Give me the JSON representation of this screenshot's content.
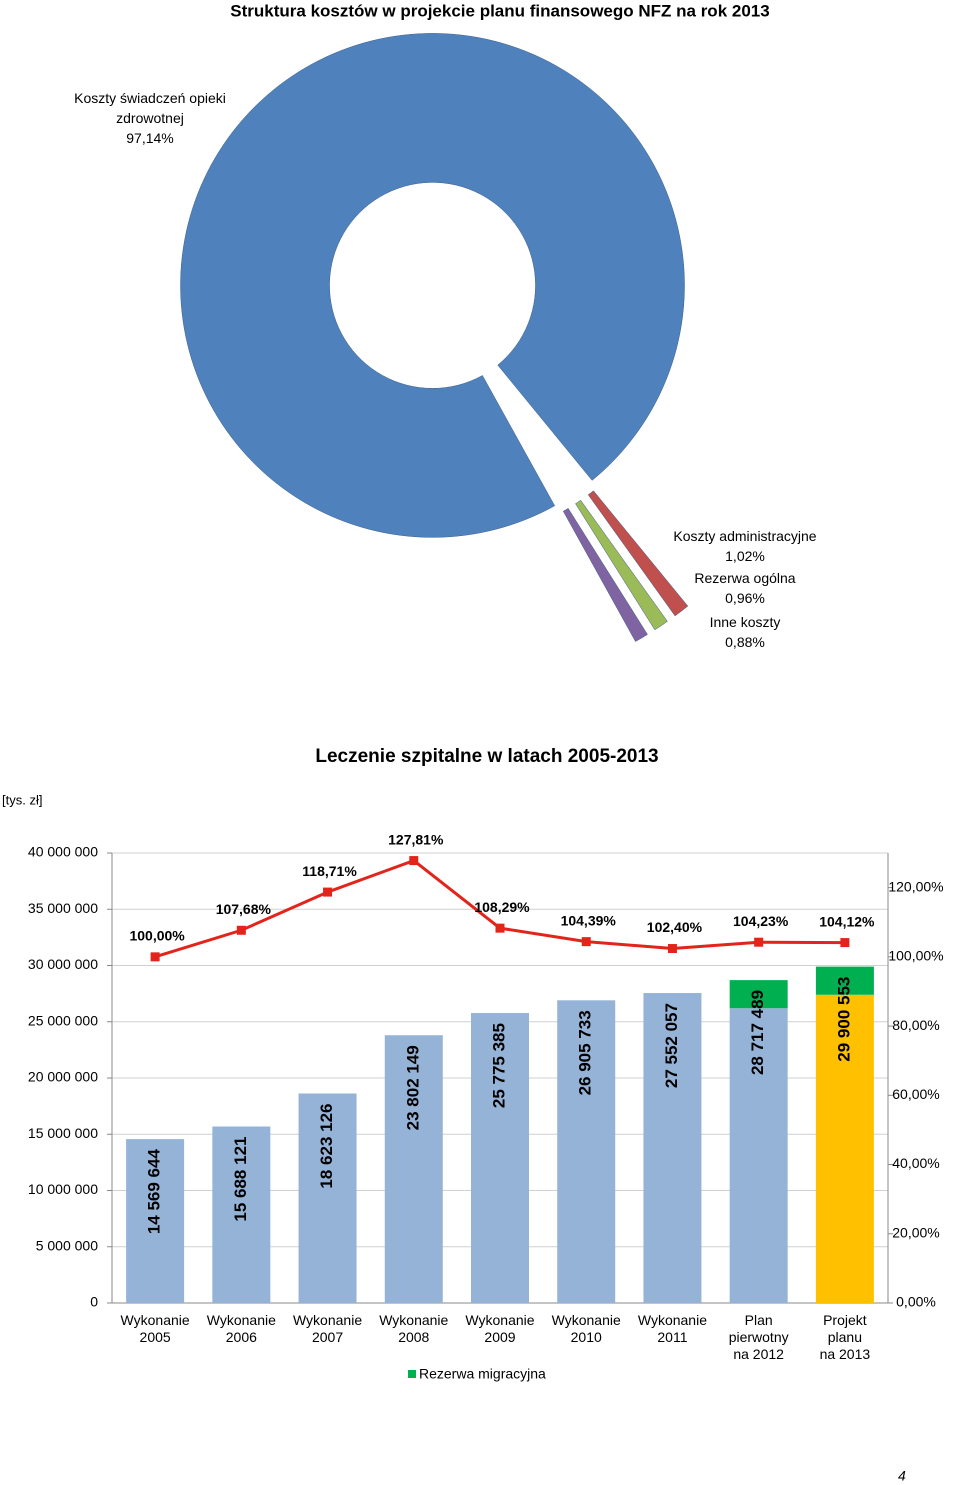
{
  "chart_data": [
    {
      "type": "pie",
      "title": "Struktura kosztów w projekcie planu finansowego NFZ na rok 2013",
      "categories": [
        "Koszty świadczeń opieki zdrowotnej",
        "Koszty administracyjne",
        "Rezerwa ogólna",
        "Inne koszty"
      ],
      "values": [
        97.14,
        1.02,
        0.96,
        0.88
      ],
      "value_labels": [
        "97,14%",
        "1,02%",
        "0,96%",
        "0,88%"
      ],
      "colors": [
        "#4f81bd",
        "#c0504d",
        "#9bbb59",
        "#8064a2"
      ]
    },
    {
      "type": "combo",
      "title": "Leczenie szpitalne w latach 2005-2013",
      "y_label": "[tys. zł]",
      "categories": [
        "Wykonanie\n2005",
        "Wykonanie\n2006",
        "Wykonanie\n2007",
        "Wykonanie\n2008",
        "Wykonanie\n2009",
        "Wykonanie\n2010",
        "Wykonanie\n2011",
        "Plan\npierwotny\nna 2012",
        "Projekt\nplanu\nna 2013"
      ],
      "series": [
        {
          "type": "bar",
          "color": "#95b3d7",
          "values": [
            14569644,
            15688121,
            18623126,
            23802149,
            25775385,
            26905733,
            27552057,
            26200000,
            null
          ]
        },
        {
          "type": "bar",
          "color": "#ffc000",
          "values": [
            null,
            null,
            null,
            null,
            null,
            null,
            null,
            null,
            27400000
          ]
        },
        {
          "type": "bar",
          "name": "Rezerwa migracyjna",
          "color": "#00b050",
          "values": [
            null,
            null,
            null,
            null,
            null,
            null,
            null,
            2500000,
            2500000
          ]
        },
        {
          "type": "line",
          "axis": "y2",
          "color": "#e3241b",
          "values": [
            100,
            107.68,
            118.71,
            127.81,
            108.29,
            104.39,
            102.4,
            104.23,
            104.12
          ],
          "value_labels": [
            "100,00%",
            "107,68%",
            "118,71%",
            "127,81%",
            "108,29%",
            "104,39%",
            "102,40%",
            "104,23%",
            "104,12%"
          ]
        }
      ],
      "totals": [
        14569644,
        15688121,
        18623126,
        23802149,
        25775385,
        26905733,
        27552057,
        28717489,
        29900553
      ],
      "total_labels": [
        "14 569 644",
        "15 688 121",
        "18 623 126",
        "23 802 149",
        "25 775 385",
        "26 905 733",
        "27 552 057",
        "28 717 489",
        "29 900 553"
      ],
      "ylim": [
        0,
        40000000
      ],
      "yticks": [
        0,
        {
          "value": 5000000,
          "label": "5 000 000"
        },
        {
          "value": 10000000,
          "label": "10 000 000"
        },
        {
          "value": 15000000,
          "label": "15 000 000"
        },
        {
          "value": 20000000,
          "label": "20 000 000"
        },
        {
          "value": 25000000,
          "label": "25 000 000"
        },
        {
          "value": 30000000,
          "label": "30 000 000"
        },
        {
          "value": 35000000,
          "label": "35 000 000"
        },
        {
          "value": 40000000,
          "label": "40 000 000"
        }
      ],
      "y2lim": [
        0,
        130
      ],
      "y2ticks": [
        {
          "value": 0,
          "label": "0,00%"
        },
        {
          "value": 20,
          "label": "20,00%"
        },
        {
          "value": 40,
          "label": "40,00%"
        },
        {
          "value": 60,
          "label": "60,00%"
        },
        {
          "value": 80,
          "label": "80,00%"
        },
        {
          "value": 100,
          "label": "100,00%"
        },
        {
          "value": 120,
          "label": "120,00%"
        }
      ],
      "grid": true,
      "legend": "bottom"
    }
  ],
  "page_number": "4"
}
